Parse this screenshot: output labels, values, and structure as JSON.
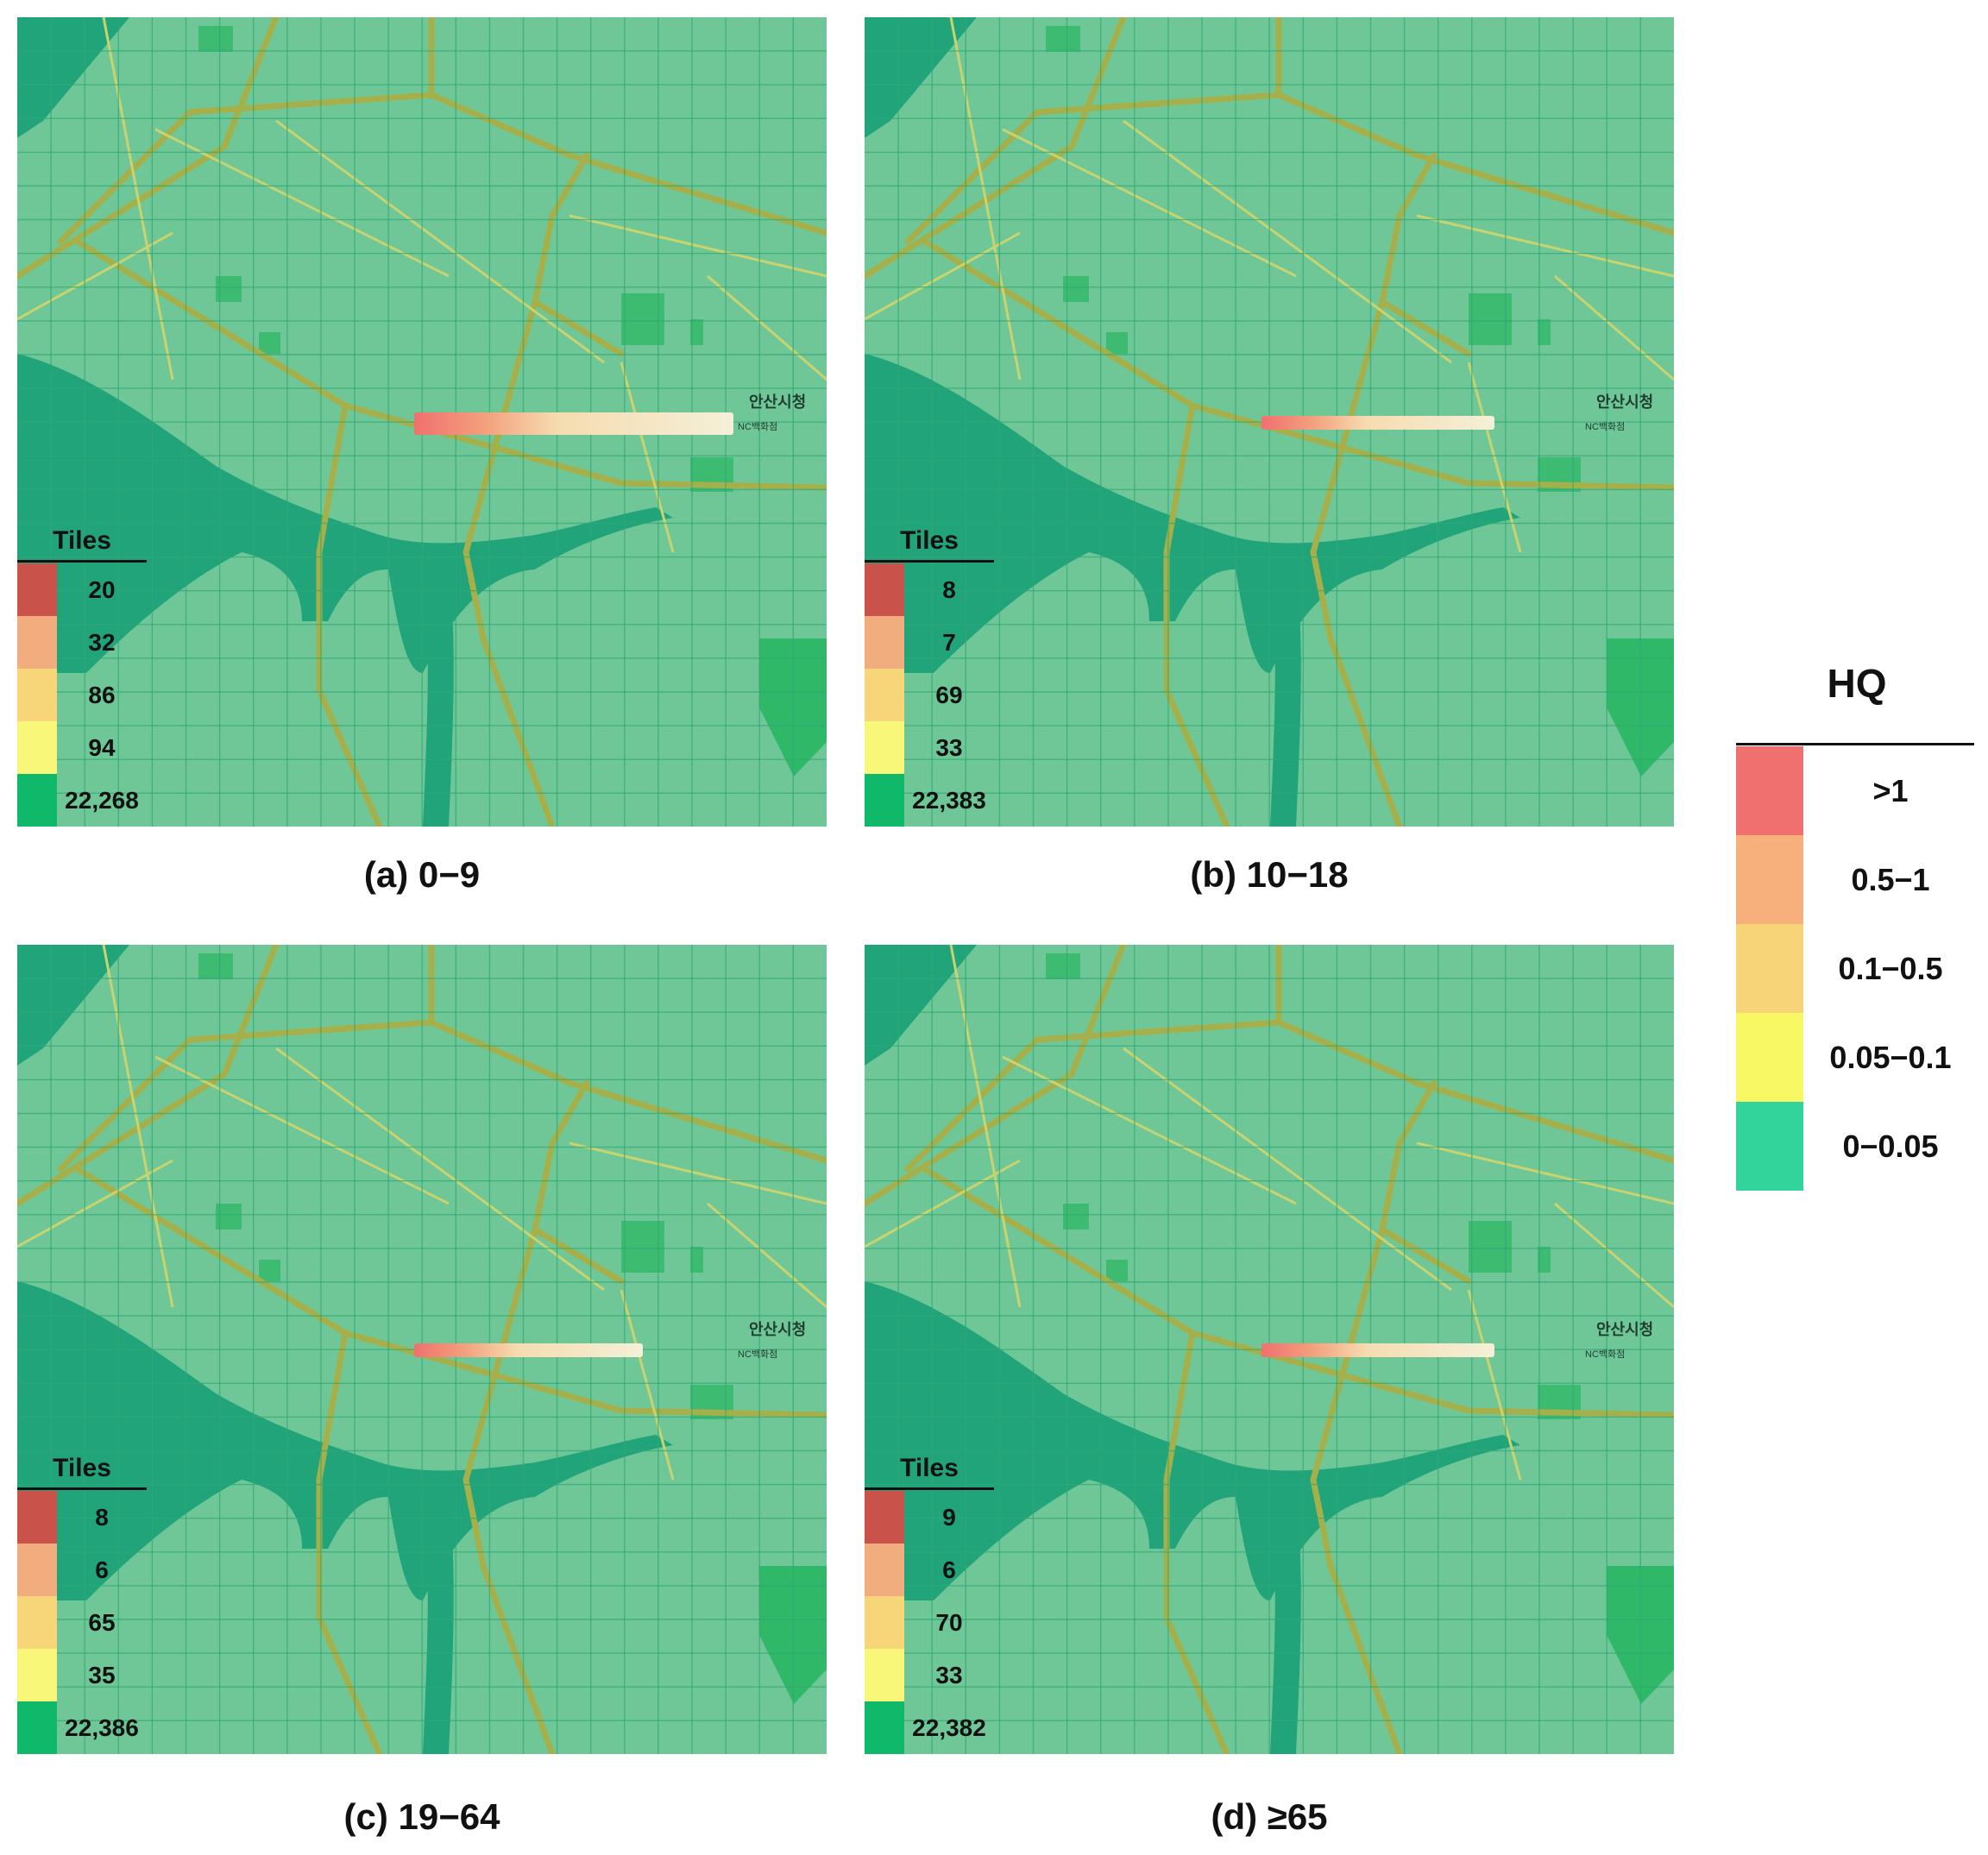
{
  "colors": {
    "gt1": "#c9534a",
    "p05_1": "#f2ad7e",
    "p01_05": "#f7d67a",
    "p005_01": "#f8f77a",
    "p0_005": "#10b86a",
    "legend_gt1": "#f07070",
    "legend_p05_1": "#f7b07c",
    "legend_p01_05": "#f8d479",
    "legend_p005_01": "#f8f864",
    "legend_p0_005": "#33d39c",
    "land": "#6fc798",
    "water": "#22a47b",
    "road_major": "#a6b04a",
    "road_minor": "#c9d36f",
    "park": "#2fb868"
  },
  "legend": {
    "title": "HQ",
    "classes": [
      {
        "label": ">1",
        "color_key": "legend_gt1"
      },
      {
        "label": "0.5−1",
        "color_key": "legend_p05_1"
      },
      {
        "label": "0.1−0.5",
        "color_key": "legend_p01_05"
      },
      {
        "label": "0.05−0.1",
        "color_key": "legend_p005_01"
      },
      {
        "label": "0−0.05",
        "color_key": "legend_p0_005"
      }
    ]
  },
  "map_labels": {
    "city_hall": "안산시청",
    "nc_dept": "NC백화점"
  },
  "panels": [
    {
      "id": "a",
      "caption_prefix": "(a)",
      "caption_range": "0−9",
      "tiles_title": "Tiles",
      "tiles": [
        "20",
        "32",
        "86",
        "94",
        "22,268"
      ],
      "plume": "wide"
    },
    {
      "id": "b",
      "caption_prefix": "(b)",
      "caption_range": "10−18",
      "tiles_title": "Tiles",
      "tiles": [
        "8",
        "7",
        "69",
        "33",
        "22,383"
      ],
      "plume": "narrow"
    },
    {
      "id": "c",
      "caption_prefix": "(c)",
      "caption_range": "19−64",
      "tiles_title": "Tiles",
      "tiles": [
        "8",
        "6",
        "65",
        "35",
        "22,386"
      ],
      "plume": "narrow-short"
    },
    {
      "id": "d",
      "caption_prefix": "(d)",
      "caption_range": "≥65",
      "tiles_title": "Tiles",
      "tiles": [
        "9",
        "6",
        "70",
        "33",
        "22,382"
      ],
      "plume": "narrow"
    }
  ]
}
